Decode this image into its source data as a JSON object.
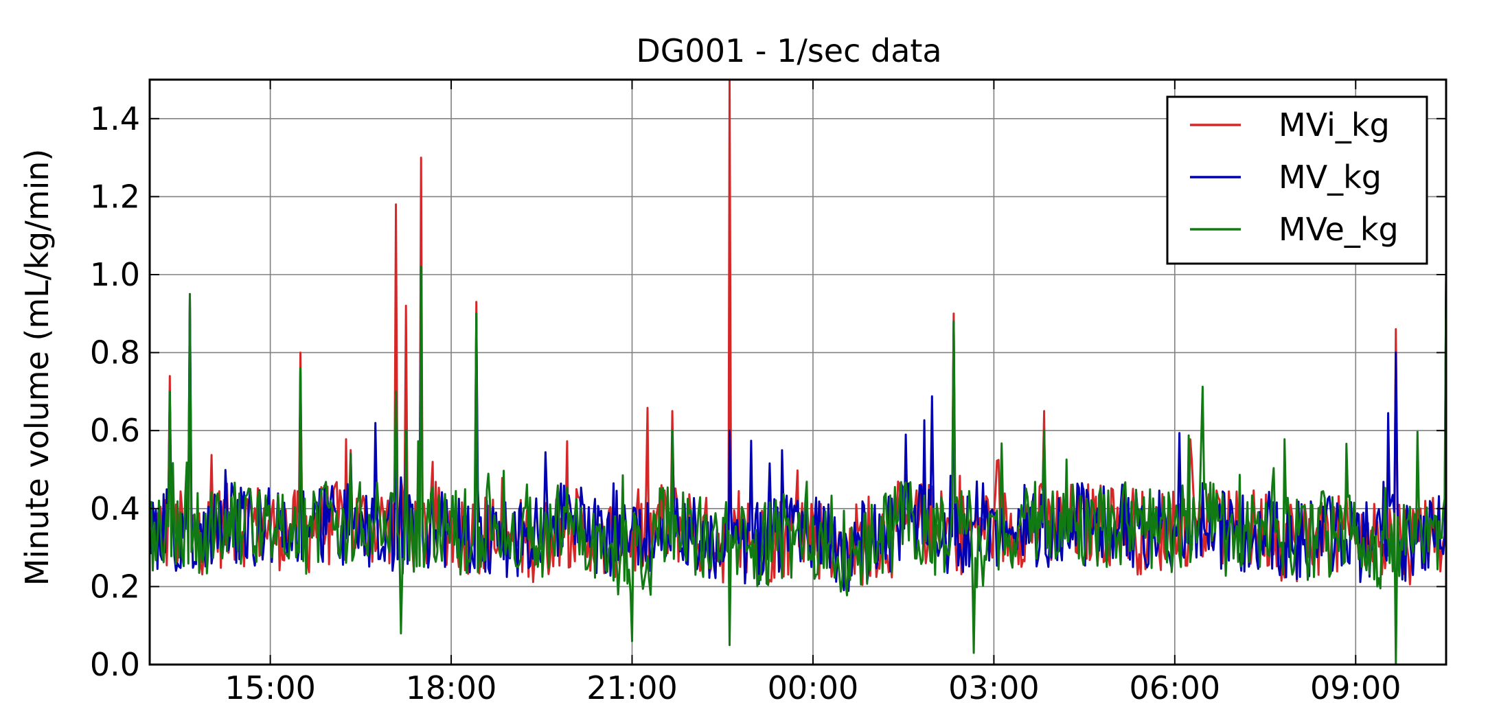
{
  "chart_data": {
    "type": "line",
    "title": "DG001 -  1/sec data",
    "xlabel": "",
    "ylabel": "Minute volume (mL/kg/min)",
    "x_is_time": true,
    "x_start": "13:00",
    "x_end": "10:30",
    "xlim_hours": [
      13.0,
      34.5
    ],
    "ylim": [
      0.0,
      1.5
    ],
    "y_ticks": [
      0.0,
      0.2,
      0.4,
      0.6,
      0.8,
      1.0,
      1.2,
      1.4
    ],
    "y_tick_labels": [
      "0.0",
      "0.2",
      "0.4",
      "0.6",
      "0.8",
      "1.0",
      "1.2",
      "1.4"
    ],
    "x_ticks": [
      15,
      18,
      21,
      24,
      27,
      30,
      33
    ],
    "x_tick_labels": [
      "15:00",
      "18:00",
      "21:00",
      "00:00",
      "03:00",
      "06:00",
      "09:00"
    ],
    "grid": true,
    "legend_position": "top-right",
    "series": [
      {
        "name": "MVi_kg",
        "color": "#d62728",
        "x": [
          "13:00",
          "13:20",
          "13:40",
          "14:00",
          "14:20",
          "14:40",
          "15:00",
          "15:20",
          "15:30",
          "15:40",
          "16:00",
          "16:20",
          "16:40",
          "17:00",
          "17:05",
          "17:10",
          "17:15",
          "17:20",
          "17:30",
          "17:40",
          "18:00",
          "18:20",
          "18:25",
          "18:40",
          "19:00",
          "19:20",
          "19:40",
          "20:00",
          "20:20",
          "20:40",
          "21:00",
          "21:20",
          "21:40",
          "22:00",
          "22:20",
          "22:35",
          "22:37",
          "22:40",
          "23:00",
          "23:20",
          "23:40",
          "00:00",
          "00:20",
          "00:40",
          "01:00",
          "01:20",
          "01:40",
          "02:00",
          "02:20",
          "02:40",
          "03:00",
          "03:20",
          "03:50",
          "04:00",
          "04:20",
          "04:40",
          "05:00",
          "05:20",
          "05:40",
          "06:00",
          "06:20",
          "06:40",
          "07:00",
          "07:20",
          "07:40",
          "08:00",
          "08:20",
          "08:40",
          "09:00",
          "09:20",
          "09:40",
          "09:45",
          "10:00",
          "10:20",
          "10:30"
        ],
        "y": [
          0.35,
          0.74,
          0.95,
          0.38,
          0.33,
          0.45,
          0.34,
          0.36,
          0.8,
          0.38,
          0.42,
          0.55,
          0.36,
          0.44,
          1.18,
          0.48,
          0.92,
          0.4,
          1.3,
          0.44,
          0.38,
          0.3,
          0.93,
          0.32,
          0.34,
          0.3,
          0.34,
          0.37,
          0.32,
          0.31,
          0.35,
          0.3,
          0.65,
          0.31,
          0.34,
          0.29,
          1.5,
          0.3,
          0.32,
          0.3,
          0.36,
          0.38,
          0.27,
          0.3,
          0.32,
          0.34,
          0.38,
          0.4,
          0.9,
          0.36,
          0.38,
          0.32,
          0.65,
          0.36,
          0.4,
          0.39,
          0.37,
          0.35,
          0.33,
          0.36,
          0.38,
          0.34,
          0.33,
          0.36,
          0.34,
          0.31,
          0.33,
          0.34,
          0.31,
          0.33,
          0.86,
          0.32,
          0.31,
          0.38,
          1.0
        ]
      },
      {
        "name": "MV_kg",
        "color": "#0000b3",
        "x": [
          "13:00",
          "13:20",
          "13:40",
          "14:00",
          "14:20",
          "14:40",
          "15:00",
          "15:20",
          "15:30",
          "15:40",
          "16:00",
          "16:20",
          "16:40",
          "17:00",
          "17:05",
          "17:10",
          "17:15",
          "17:20",
          "17:30",
          "17:40",
          "18:00",
          "18:20",
          "18:25",
          "18:40",
          "19:00",
          "19:20",
          "19:40",
          "20:00",
          "20:20",
          "20:40",
          "21:00",
          "21:20",
          "21:40",
          "22:00",
          "22:20",
          "22:35",
          "22:37",
          "22:40",
          "23:00",
          "23:20",
          "23:40",
          "00:00",
          "00:20",
          "00:40",
          "01:00",
          "01:20",
          "01:40",
          "02:00",
          "02:20",
          "02:40",
          "03:00",
          "03:20",
          "03:50",
          "04:00",
          "04:20",
          "04:40",
          "05:00",
          "05:20",
          "05:40",
          "06:00",
          "06:20",
          "06:40",
          "07:00",
          "07:20",
          "07:40",
          "08:00",
          "08:20",
          "08:40",
          "09:00",
          "09:20",
          "09:40",
          "09:45",
          "10:00",
          "10:20",
          "10:30"
        ],
        "y": [
          0.35,
          0.7,
          0.95,
          0.38,
          0.33,
          0.45,
          0.34,
          0.36,
          0.76,
          0.38,
          0.42,
          0.54,
          0.36,
          0.44,
          0.7,
          0.48,
          0.6,
          0.4,
          1.02,
          0.44,
          0.38,
          0.3,
          0.9,
          0.32,
          0.34,
          0.3,
          0.34,
          0.37,
          0.32,
          0.31,
          0.35,
          0.3,
          0.6,
          0.31,
          0.34,
          0.29,
          0.6,
          0.3,
          0.32,
          0.3,
          0.36,
          0.38,
          0.27,
          0.3,
          0.32,
          0.34,
          0.38,
          0.4,
          0.88,
          0.36,
          0.38,
          0.32,
          0.6,
          0.36,
          0.4,
          0.39,
          0.37,
          0.35,
          0.33,
          0.36,
          0.38,
          0.34,
          0.33,
          0.36,
          0.34,
          0.31,
          0.33,
          0.34,
          0.31,
          0.33,
          0.8,
          0.32,
          0.31,
          0.38,
          1.0
        ]
      },
      {
        "name": "MVe_kg",
        "color": "#127a12",
        "x": [
          "13:00",
          "13:20",
          "13:40",
          "14:00",
          "14:20",
          "14:40",
          "15:00",
          "15:20",
          "15:30",
          "15:40",
          "16:00",
          "16:20",
          "16:40",
          "17:00",
          "17:05",
          "17:10",
          "17:15",
          "17:20",
          "17:30",
          "17:40",
          "18:00",
          "18:20",
          "18:25",
          "18:40",
          "19:00",
          "19:20",
          "19:40",
          "20:00",
          "20:20",
          "20:40",
          "21:00",
          "21:20",
          "21:40",
          "22:00",
          "22:20",
          "22:35",
          "22:37",
          "22:40",
          "23:00",
          "23:20",
          "23:40",
          "00:00",
          "00:20",
          "00:40",
          "01:00",
          "01:20",
          "01:40",
          "02:00",
          "02:20",
          "02:40",
          "03:00",
          "03:20",
          "03:50",
          "04:00",
          "04:20",
          "04:40",
          "05:00",
          "05:20",
          "05:40",
          "06:00",
          "06:20",
          "06:40",
          "07:00",
          "07:20",
          "07:40",
          "08:00",
          "08:20",
          "08:40",
          "09:00",
          "09:20",
          "09:40",
          "09:45",
          "10:00",
          "10:20",
          "10:30"
        ],
        "y": [
          0.35,
          0.7,
          0.95,
          0.38,
          0.33,
          0.45,
          0.34,
          0.36,
          0.76,
          0.38,
          0.42,
          0.54,
          0.36,
          0.44,
          0.7,
          0.08,
          0.6,
          0.4,
          1.02,
          0.44,
          0.38,
          0.3,
          0.9,
          0.32,
          0.34,
          0.3,
          0.34,
          0.37,
          0.32,
          0.31,
          0.06,
          0.3,
          0.6,
          0.31,
          0.34,
          0.29,
          0.05,
          0.3,
          0.32,
          0.3,
          0.36,
          0.38,
          0.27,
          0.3,
          0.32,
          0.34,
          0.38,
          0.4,
          0.88,
          0.03,
          0.38,
          0.32,
          0.6,
          0.36,
          0.4,
          0.39,
          0.37,
          0.35,
          0.33,
          0.36,
          0.38,
          0.34,
          0.33,
          0.36,
          0.34,
          0.31,
          0.33,
          0.34,
          0.31,
          0.33,
          0.0,
          0.32,
          0.31,
          0.38,
          1.0
        ]
      }
    ]
  }
}
